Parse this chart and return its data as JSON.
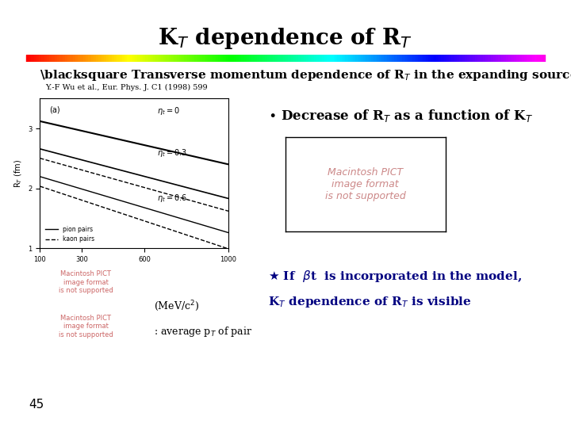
{
  "title": "K$_T$ dependence of R$_T$",
  "subtitle": "■Transverse momentum dependence of R$_T$ in the expanding source model",
  "ref": "Y.-F Wu et al., Eur. Phys. J. C1 (1998) 599",
  "bullet1": "● Decrease of R$_T$ as a function of K$_T$",
  "star_text_line1": " If βt is incorporated in the model,",
  "star_text_line2": "K$_T$ dependence of R$_T$ is visible",
  "x_label": "(MeV/c$^2$)",
  "avg_label": ": average p$_T$ of pair",
  "page_num": "45",
  "bg_color": "#ffffff",
  "rainbow_colors": [
    "#8B00FF",
    "#4B0082",
    "#0000FF",
    "#00BFFF",
    "#00FF00",
    "#FFFF00",
    "#FFA500",
    "#FF4500",
    "#FF69B4"
  ],
  "macintosh_text": "Macintosh PICT\nimage format\nis not supported",
  "plot_panel_label": "(a)"
}
